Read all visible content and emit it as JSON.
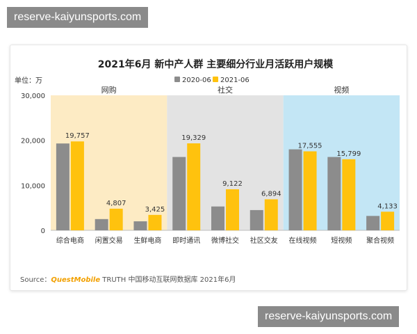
{
  "watermark": {
    "top": "reserve-kaiyunsports.com",
    "bottom": "reserve-kaiyunsports.com"
  },
  "colors": {
    "series_2020": "#8c8c8c",
    "series_2021": "#ffc20e",
    "group_online_shopping": "#fdebc4",
    "group_social": "#e3e3e3",
    "group_video": "#c3e6f5",
    "source_brand": "#f2a000"
  },
  "chart_data": {
    "type": "bar",
    "title": "2021年6月 新中产人群 主要细分行业月活跃用户规模",
    "unit_label": "单位：万",
    "ylim": [
      0,
      30000
    ],
    "yticks": [
      0,
      10000,
      20000,
      30000
    ],
    "ytick_labels": [
      "0",
      "10,000",
      "20,000",
      "30,000"
    ],
    "categories": [
      "综合电商",
      "闲置交易",
      "生鲜电商",
      "即时通讯",
      "微博社交",
      "社区交友",
      "在线视频",
      "短视频",
      "聚合视频"
    ],
    "groups": [
      {
        "name": "网购",
        "categories": [
          0,
          1,
          2
        ],
        "color_key": "group_online_shopping"
      },
      {
        "name": "社交",
        "categories": [
          3,
          4,
          5
        ],
        "color_key": "group_social"
      },
      {
        "name": "视频",
        "categories": [
          6,
          7,
          8
        ],
        "color_key": "group_video"
      }
    ],
    "series": [
      {
        "name": "2020-06",
        "values": [
          19300,
          2500,
          2000,
          16300,
          5300,
          4500,
          18000,
          16300,
          3200
        ],
        "color_key": "series_2020",
        "labels": [
          "",
          "",
          "",
          "",
          "",
          "",
          "",
          "",
          ""
        ]
      },
      {
        "name": "2021-06",
        "values": [
          19757,
          4807,
          3425,
          19329,
          9122,
          6894,
          17555,
          15799,
          4133
        ],
        "color_key": "series_2021",
        "labels": [
          "19,757",
          "4,807",
          "3,425",
          "19,329",
          "9,122",
          "6,894",
          "17,555",
          "15,799",
          "4,133"
        ]
      }
    ],
    "legend_position": "top-center",
    "grid": false
  },
  "source": {
    "prefix": "Source：",
    "brand": "QuestMobile",
    "rest": " TRUTH 中国移动互联网数据库 2021年6月"
  }
}
